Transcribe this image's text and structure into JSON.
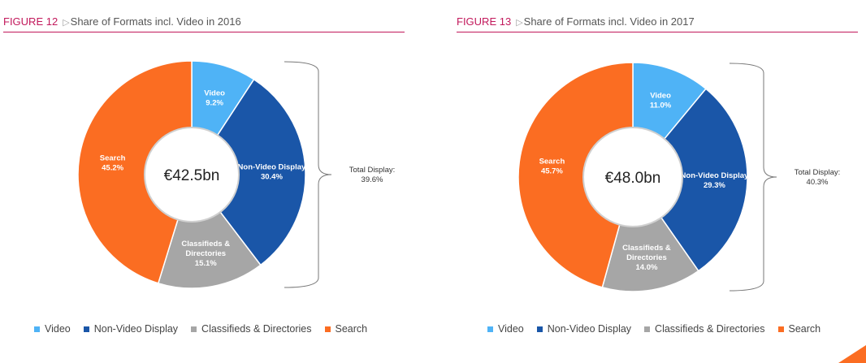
{
  "colors": {
    "video": "#4fb3f6",
    "non_video_display": "#1a56a8",
    "classifieds": "#a6a6a6",
    "search": "#fb6d22",
    "accent": "#c2185b"
  },
  "legend": [
    "Video",
    "Non-Video Display",
    "Classifieds & Directories",
    "Search"
  ],
  "chart_data": [
    {
      "type": "pie",
      "figure_label": "FIGURE 12",
      "title": "Share of Formats incl. Video in 2016",
      "center_label": "€42.5bn",
      "slices": [
        {
          "name": "Video",
          "value": 9.2,
          "label_lines": [
            "Video",
            "9.2%"
          ]
        },
        {
          "name": "Non-Video Display",
          "value": 30.4,
          "label_lines": [
            "Non-Video Display",
            "30.4%"
          ]
        },
        {
          "name": "Classifieds & Directories",
          "value": 15.1,
          "label_lines": [
            "Classifieds &",
            "Directories",
            "15.1%"
          ]
        },
        {
          "name": "Search",
          "value": 45.2,
          "label_lines": [
            "Search",
            "45.2%"
          ]
        }
      ],
      "bracket_label_lines": [
        "Total Display:",
        "39.6%"
      ]
    },
    {
      "type": "pie",
      "figure_label": "FIGURE 13",
      "title": "Share of Formats incl. Video in 2017",
      "center_label": "€48.0bn",
      "slices": [
        {
          "name": "Video",
          "value": 11.0,
          "label_lines": [
            "Video",
            "11.0%"
          ]
        },
        {
          "name": "Non-Video Display",
          "value": 29.3,
          "label_lines": [
            "Non-Video Display",
            "29.3%"
          ]
        },
        {
          "name": "Classifieds & Directories",
          "value": 14.0,
          "label_lines": [
            "Classifieds &",
            "Directories",
            "14.0%"
          ]
        },
        {
          "name": "Search",
          "value": 45.7,
          "label_lines": [
            "Search",
            "45.7%"
          ]
        }
      ],
      "bracket_label_lines": [
        "Total Display:",
        "40.3%"
      ]
    }
  ]
}
